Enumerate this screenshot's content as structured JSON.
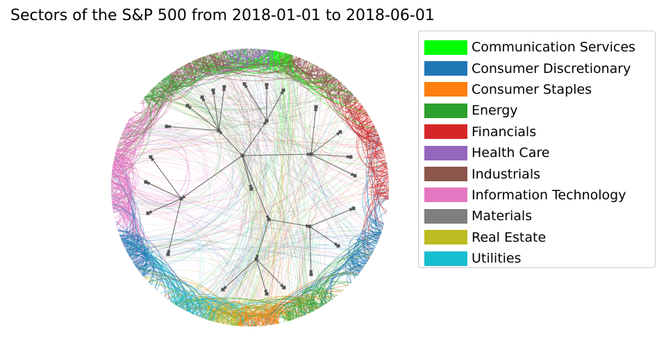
{
  "title": "Sectors of the S&P 500 from 2018-01-01 to 2018-06-01",
  "legend": [
    {
      "name": "Communication Services",
      "color": "#00ff00"
    },
    {
      "name": "Consumer Discretionary",
      "color": "#1f77b4"
    },
    {
      "name": "Consumer Staples",
      "color": "#ff7f0e"
    },
    {
      "name": "Energy",
      "color": "#2ca02c"
    },
    {
      "name": "Financials",
      "color": "#d62728"
    },
    {
      "name": "Health Care",
      "color": "#9467bd"
    },
    {
      "name": "Industrials",
      "color": "#8c564b"
    },
    {
      "name": "Information Technology",
      "color": "#e377c2"
    },
    {
      "name": "Materials",
      "color": "#7f7f7f"
    },
    {
      "name": "Real Estate",
      "color": "#bcbd22"
    },
    {
      "name": "Utilities",
      "color": "#17becf"
    }
  ]
}
